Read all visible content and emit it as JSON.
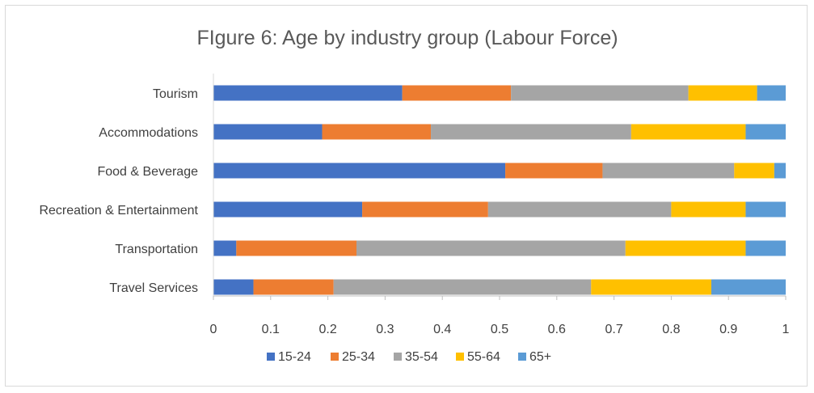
{
  "chart_data": {
    "type": "bar",
    "orientation": "horizontal",
    "stacked": true,
    "title": "FIgure 6: Age by industry group (Labour Force)",
    "xlabel": "",
    "ylabel": "",
    "xlim": [
      0,
      1
    ],
    "xticks": [
      "0",
      "0.1",
      "0.2",
      "0.3",
      "0.4",
      "0.5",
      "0.6",
      "0.7",
      "0.8",
      "0.9",
      "1"
    ],
    "grid": false,
    "legend_position": "bottom",
    "categories": [
      "Tourism",
      "Accommodations",
      "Food & Beverage",
      "Recreation & Entertainment",
      "Transportation",
      "Travel Services"
    ],
    "series": [
      {
        "name": "15-24",
        "color": "#4472c4",
        "values": [
          0.33,
          0.19,
          0.51,
          0.26,
          0.04,
          0.07
        ]
      },
      {
        "name": "25-34",
        "color": "#ed7d31",
        "values": [
          0.19,
          0.19,
          0.17,
          0.22,
          0.21,
          0.14
        ]
      },
      {
        "name": "35-54",
        "color": "#a5a5a5",
        "values": [
          0.31,
          0.35,
          0.23,
          0.32,
          0.47,
          0.45
        ]
      },
      {
        "name": "55-64",
        "color": "#ffc000",
        "values": [
          0.12,
          0.2,
          0.07,
          0.13,
          0.21,
          0.21
        ]
      },
      {
        "name": "65+",
        "color": "#5b9bd5",
        "values": [
          0.05,
          0.07,
          0.02,
          0.07,
          0.07,
          0.13
        ]
      }
    ]
  }
}
